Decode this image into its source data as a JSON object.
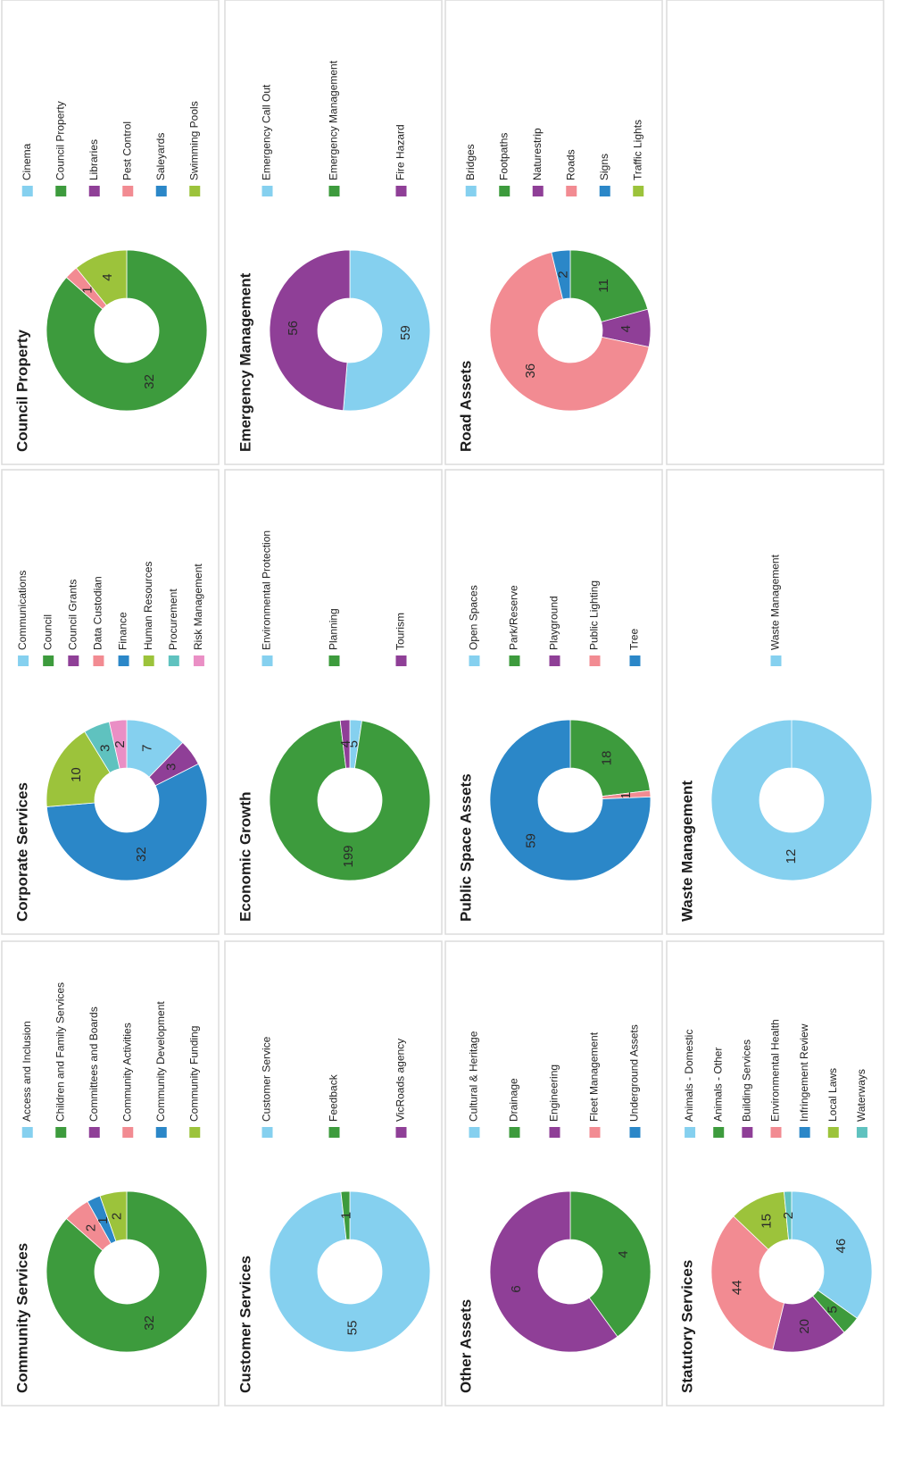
{
  "chart_data": [
    {
      "type": "donut",
      "title": "Community Services",
      "categories": [
        "Access and Inclusion",
        "Children and Family Services",
        "Committees and Boards",
        "Community Activities",
        "Community Development",
        "Community Funding"
      ],
      "values": [
        0,
        32,
        0,
        2,
        1,
        2
      ],
      "colors": [
        "#85d0ef",
        "#3d9b3d",
        "#8f3f97",
        "#f28b92",
        "#2b87c8",
        "#9cc33b"
      ]
    },
    {
      "type": "donut",
      "title": "Corporate Services",
      "categories": [
        "Communications",
        "Council",
        "Council Grants",
        "Data Custodian",
        "Finance",
        "Human Resources",
        "Procurement",
        "Risk Management"
      ],
      "values": [
        7,
        0,
        3,
        0,
        32,
        10,
        3,
        2
      ],
      "colors": [
        "#85d0ef",
        "#3d9b3d",
        "#8f3f97",
        "#f28b92",
        "#2b87c8",
        "#9cc33b",
        "#5fc2bf",
        "#ea8fc5"
      ]
    },
    {
      "type": "donut",
      "title": "Council Property",
      "categories": [
        "Cinema",
        "Council Property",
        "Libraries",
        "Pest Control",
        "Saleyards",
        "Swimming Pools"
      ],
      "values": [
        0,
        32,
        0,
        1,
        0,
        4
      ],
      "colors": [
        "#85d0ef",
        "#3d9b3d",
        "#8f3f97",
        "#f28b92",
        "#2b87c8",
        "#9cc33b"
      ]
    },
    {
      "type": "donut",
      "title": "Customer Services",
      "categories": [
        "Customer Service",
        "Feedback",
        "VicRoads agency"
      ],
      "values": [
        55,
        1,
        0
      ],
      "colors": [
        "#85d0ef",
        "#3d9b3d",
        "#8f3f97"
      ]
    },
    {
      "type": "donut",
      "title": "Economic Growth",
      "categories": [
        "Environmental Protection",
        "Planning",
        "Tourism"
      ],
      "values": [
        5,
        199,
        4
      ],
      "colors": [
        "#85d0ef",
        "#3d9b3d",
        "#8f3f97"
      ]
    },
    {
      "type": "donut",
      "title": "Emergency Management",
      "categories": [
        "Emergency Call Out",
        "Emergency Management",
        "Fire Hazard"
      ],
      "values": [
        59,
        0,
        56
      ],
      "colors": [
        "#85d0ef",
        "#3d9b3d",
        "#8f3f97"
      ]
    },
    {
      "type": "donut",
      "title": "Other Assets",
      "categories": [
        "Cultural & Heritage",
        "Drainage",
        "Engineering",
        "Fleet Management",
        "Underground Assets"
      ],
      "values": [
        0,
        4,
        6,
        0,
        0
      ],
      "colors": [
        "#85d0ef",
        "#3d9b3d",
        "#8f3f97",
        "#f28b92",
        "#2b87c8"
      ]
    },
    {
      "type": "donut",
      "title": "Public Space Assets",
      "categories": [
        "Open Spaces",
        "Park/Reserve",
        "Playground",
        "Public Lighting",
        "Tree"
      ],
      "values": [
        0,
        18,
        0,
        1,
        59
      ],
      "colors": [
        "#85d0ef",
        "#3d9b3d",
        "#8f3f97",
        "#f28b92",
        "#2b87c8"
      ]
    },
    {
      "type": "donut",
      "title": "Road Assets",
      "categories": [
        "Bridges",
        "Footpaths",
        "Naturestrip",
        "Roads",
        "Signs",
        "Traffic Lights"
      ],
      "values": [
        0,
        11,
        4,
        36,
        2,
        0
      ],
      "colors": [
        "#85d0ef",
        "#3d9b3d",
        "#8f3f97",
        "#f28b92",
        "#2b87c8",
        "#9cc33b"
      ]
    },
    {
      "type": "donut",
      "title": "Statutory Services",
      "categories": [
        "Animals - Domestic",
        "Animals - Other",
        "Building Services",
        "Environmental Health",
        "Infringement Review",
        "Local Laws",
        "Waterways"
      ],
      "values": [
        46,
        5,
        20,
        44,
        0,
        15,
        2
      ],
      "colors": [
        "#85d0ef",
        "#3d9b3d",
        "#8f3f97",
        "#f28b92",
        "#2b87c8",
        "#9cc33b",
        "#5fc2bf"
      ]
    },
    {
      "type": "donut",
      "title": "Waste Management",
      "categories": [
        "Waste Management"
      ],
      "values": [
        12
      ],
      "colors": [
        "#85d0ef"
      ]
    }
  ]
}
